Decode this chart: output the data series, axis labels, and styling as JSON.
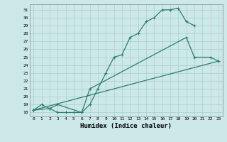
{
  "title": "",
  "xlabel": "Humidex (Indice chaleur)",
  "bg_color": "#cce8e8",
  "line_color": "#2e7d6e",
  "grid_color": "#aacfcf",
  "xlim": [
    -0.5,
    23.5
  ],
  "ylim": [
    17.5,
    31.7
  ],
  "xticks": [
    0,
    1,
    2,
    3,
    4,
    5,
    6,
    7,
    8,
    9,
    10,
    11,
    12,
    13,
    14,
    15,
    16,
    17,
    18,
    19,
    20,
    21,
    22,
    23
  ],
  "yticks": [
    18,
    19,
    20,
    21,
    22,
    23,
    24,
    25,
    26,
    27,
    28,
    29,
    30,
    31
  ],
  "line1_x": [
    0,
    1,
    2,
    3,
    4,
    5,
    6,
    7,
    8,
    9,
    10,
    11,
    12,
    13,
    14,
    15,
    16,
    17,
    18,
    19,
    20
  ],
  "line1_y": [
    18.3,
    19.0,
    18.5,
    18.0,
    18.0,
    18.0,
    18.0,
    19.0,
    21.0,
    23.0,
    25.0,
    25.3,
    27.5,
    28.0,
    29.5,
    30.0,
    31.0,
    31.0,
    31.2,
    29.5,
    29.0
  ],
  "line2_x": [
    0,
    2,
    3,
    6,
    7,
    19,
    20,
    22,
    23
  ],
  "line2_y": [
    18.3,
    18.5,
    19.0,
    18.0,
    21.0,
    27.5,
    25.0,
    25.0,
    24.5
  ],
  "line3_x": [
    0,
    23
  ],
  "line3_y": [
    18.3,
    24.5
  ],
  "marker": "+"
}
